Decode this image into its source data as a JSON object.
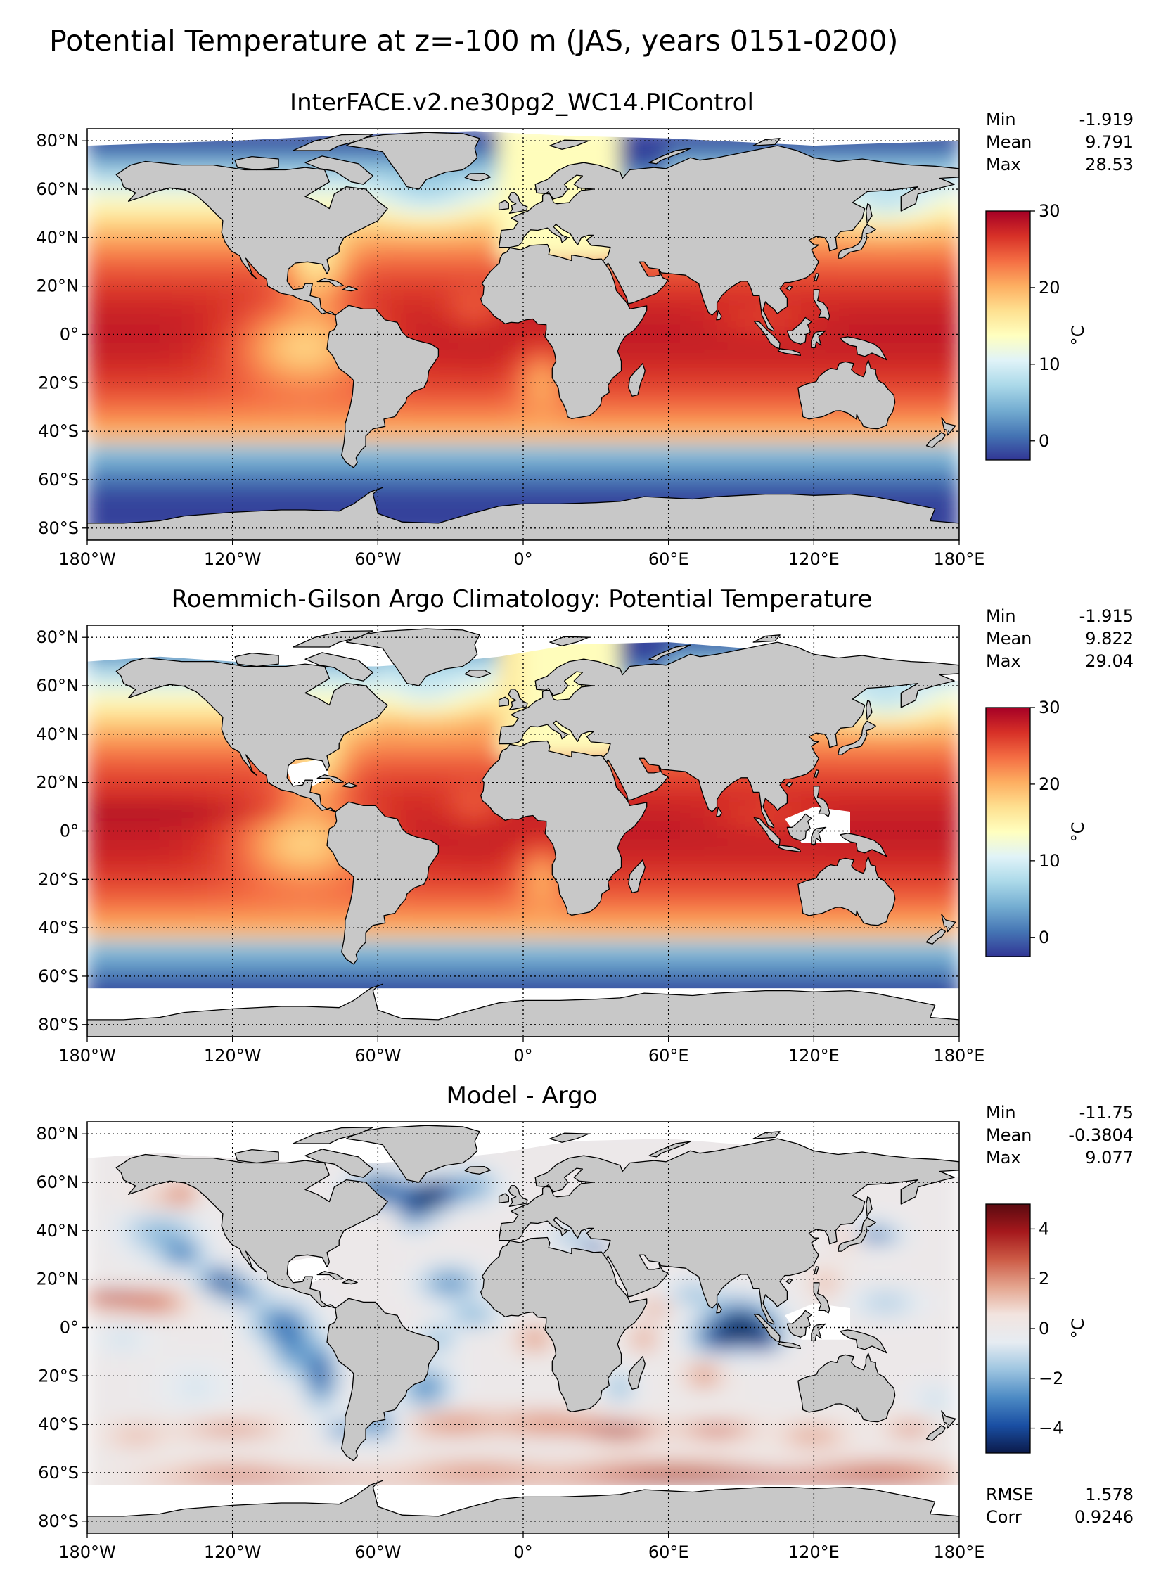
{
  "figure_title": "Potential Temperature at z=-100 m (JAS, years 0151-0200)",
  "lon_ticks": [
    "180°W",
    "120°W",
    "60°W",
    "0°",
    "60°E",
    "120°E",
    "180°E"
  ],
  "lat_ticks": [
    "80°N",
    "60°N",
    "40°N",
    "20°N",
    "0°",
    "20°S",
    "40°S",
    "60°S",
    "80°S"
  ],
  "panels": [
    {
      "title": "InterFACE.v2.ne30pg2_WC14.PIControl",
      "stats": [
        {
          "label": "Min",
          "value": "-1.919"
        },
        {
          "label": "Mean",
          "value": "9.791"
        },
        {
          "label": "Max",
          "value": "28.53"
        }
      ],
      "footer_stats": [],
      "colorbar": {
        "unit": "°C",
        "range": [
          -2.5,
          30
        ],
        "ticks": [
          {
            "value": 0,
            "label": "0"
          },
          {
            "value": 10,
            "label": "10"
          },
          {
            "value": 20,
            "label": "20"
          },
          {
            "value": 30,
            "label": "30"
          }
        ],
        "colors": [
          "#313695",
          "#4575b4",
          "#74add1",
          "#abd9e9",
          "#e0f3f8",
          "#ffffbf",
          "#fee090",
          "#fdae61",
          "#f46d43",
          "#d73027",
          "#a50026"
        ]
      }
    },
    {
      "title": "Roemmich-Gilson Argo Climatology: Potential Temperature",
      "stats": [
        {
          "label": "Min",
          "value": "-1.915"
        },
        {
          "label": "Mean",
          "value": "9.822"
        },
        {
          "label": "Max",
          "value": "29.04"
        }
      ],
      "footer_stats": [],
      "colorbar": {
        "unit": "°C",
        "range": [
          -2.5,
          30
        ],
        "ticks": [
          {
            "value": 0,
            "label": "0"
          },
          {
            "value": 10,
            "label": "10"
          },
          {
            "value": 20,
            "label": "20"
          },
          {
            "value": 30,
            "label": "30"
          }
        ],
        "colors": [
          "#313695",
          "#4575b4",
          "#74add1",
          "#abd9e9",
          "#e0f3f8",
          "#ffffbf",
          "#fee090",
          "#fdae61",
          "#f46d43",
          "#d73027",
          "#a50026"
        ]
      }
    },
    {
      "title": "Model - Argo",
      "stats": [
        {
          "label": "Min",
          "value": "-11.75"
        },
        {
          "label": "Mean",
          "value": "-0.3804"
        },
        {
          "label": "Max",
          "value": "9.077"
        }
      ],
      "footer_stats": [
        {
          "label": "RMSE",
          "value": "1.578"
        },
        {
          "label": "Corr",
          "value": "0.9246"
        }
      ],
      "colorbar": {
        "unit": "°C",
        "range": [
          -5,
          5
        ],
        "ticks": [
          {
            "value": -4,
            "label": "−4"
          },
          {
            "value": -2,
            "label": "−2"
          },
          {
            "value": 0,
            "label": "0"
          },
          {
            "value": 2,
            "label": "2"
          },
          {
            "value": 4,
            "label": "4"
          }
        ],
        "colors": [
          "#0b1a4a",
          "#1a4fa3",
          "#4c8ac4",
          "#9cc4e0",
          "#e6ecf2",
          "#f2e4df",
          "#e4a58f",
          "#cc5a45",
          "#a5181c",
          "#5a0a10"
        ]
      }
    }
  ],
  "colors": {
    "land": "#c8c8c8",
    "no_data": "#ffffff",
    "coastline": "#000000",
    "gridline": "#000000"
  }
}
